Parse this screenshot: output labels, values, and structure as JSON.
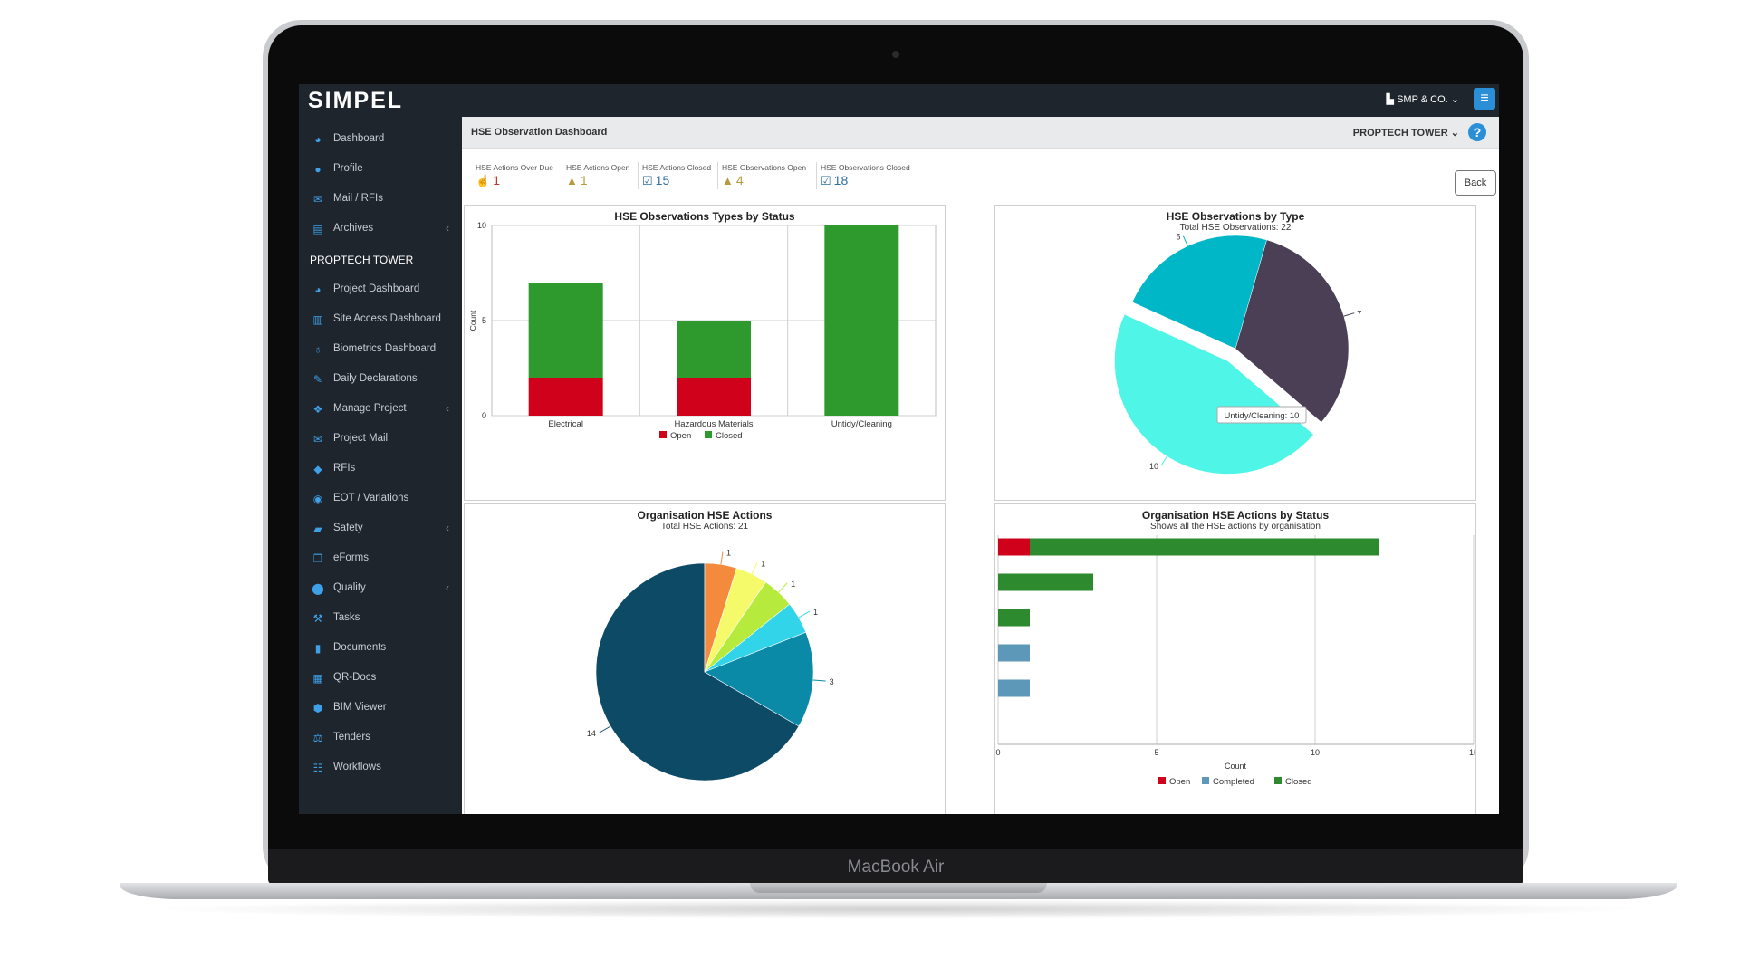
{
  "laptop": {
    "brand": "MacBook Air"
  },
  "app": {
    "logo": "SIMPEL",
    "company": "SMP & CO.",
    "page_title": "HSE Observation Dashboard",
    "project": "PROPTECH TOWER",
    "back_label": "Back"
  },
  "sidebar": {
    "items": [
      {
        "label": "Dashboard",
        "icon": "pie-icon"
      },
      {
        "label": "Profile",
        "icon": "user-icon"
      },
      {
        "label": "Mail / RFIs",
        "icon": "mail-icon"
      },
      {
        "label": "Archives",
        "icon": "archive-icon"
      }
    ],
    "section": "PROPTECH TOWER",
    "project_items": [
      {
        "label": "Project Dashboard",
        "icon": "pie-icon"
      },
      {
        "label": "Site Access Dashboard",
        "icon": "barcode-icon"
      },
      {
        "label": "Biometrics Dashboard",
        "icon": "fingerprint-icon"
      },
      {
        "label": "Daily Declarations",
        "icon": "edit-icon"
      },
      {
        "label": "Manage Project",
        "icon": "cubes-icon"
      },
      {
        "label": "Project Mail",
        "icon": "mail-icon"
      },
      {
        "label": "RFIs",
        "icon": "tag-icon"
      },
      {
        "label": "EOT / Variations",
        "icon": "eye-icon"
      },
      {
        "label": "Safety",
        "icon": "toolbox-icon"
      },
      {
        "label": "eForms",
        "icon": "copy-icon"
      },
      {
        "label": "Quality",
        "icon": "pin-icon"
      },
      {
        "label": "Tasks",
        "icon": "wrench-icon"
      },
      {
        "label": "Documents",
        "icon": "book-icon"
      },
      {
        "label": "QR-Docs",
        "icon": "qr-icon"
      },
      {
        "label": "BIM Viewer",
        "icon": "cube-icon"
      },
      {
        "label": "Tenders",
        "icon": "gavel-icon"
      },
      {
        "label": "Workflows",
        "icon": "sitemap-icon"
      }
    ]
  },
  "kpis": [
    {
      "label": "HSE Actions Over Due",
      "value": "1",
      "icon": "hand-icon",
      "color": "#c0392b"
    },
    {
      "label": "HSE Actions Open",
      "value": "1",
      "icon": "warning-icon",
      "color": "#b59a3e"
    },
    {
      "label": "HSE Actions Closed",
      "value": "15",
      "icon": "check-icon",
      "color": "#2f6f9f"
    },
    {
      "label": "HSE Observations Open",
      "value": "4",
      "icon": "warning-icon",
      "color": "#b59a3e"
    },
    {
      "label": "HSE Observations Closed",
      "value": "18",
      "icon": "check-icon",
      "color": "#2f6f9f"
    }
  ],
  "chart_data": [
    {
      "type": "bar",
      "title": "HSE Observations Types by Status",
      "ylabel": "Count",
      "categories": [
        "Electrical",
        "Hazardous Materials",
        "Untidy/Cleaning"
      ],
      "series": [
        {
          "name": "Open",
          "values": [
            2,
            2,
            0
          ],
          "color": "#d0021b"
        },
        {
          "name": "Closed",
          "values": [
            5,
            3,
            10
          ],
          "color": "#2e9a2e"
        }
      ],
      "ylim": [
        0,
        10
      ],
      "yticks": [
        "0",
        "5",
        "10"
      ],
      "stacked": true,
      "legend": "bottom"
    },
    {
      "type": "pie",
      "title": "HSE Observations by Type",
      "subtitle": "Total HSE Observations: 22",
      "slices": [
        {
          "value": 7,
          "label": "7",
          "color": "#4a3f55"
        },
        {
          "value": 10,
          "label": "10",
          "color": "#4ff5e6"
        },
        {
          "value": 5,
          "label": "5",
          "color": "#00b7c8"
        }
      ],
      "tooltip": "Untidy/Cleaning: 10"
    },
    {
      "type": "pie",
      "title": "Organisation HSE Actions",
      "subtitle": "Total HSE Actions: 21",
      "slices": [
        {
          "value": 14,
          "label": "14",
          "color": "#0d4a66"
        },
        {
          "value": 1,
          "label": "1",
          "color": "#f48a3c"
        },
        {
          "value": 1,
          "label": "1",
          "color": "#f4fa6a"
        },
        {
          "value": 1,
          "label": "1",
          "color": "#b6ea3c"
        },
        {
          "value": 1,
          "label": "1",
          "color": "#32d4ea"
        },
        {
          "value": 3,
          "label": "3",
          "color": "#0b8aa8"
        }
      ]
    },
    {
      "type": "bar",
      "orientation": "horizontal",
      "title": "Organisation HSE Actions by Status",
      "subtitle": "Shows all the HSE actions by organisation",
      "xlabel": "Count",
      "categories": [
        "",
        "",
        "",
        "",
        ""
      ],
      "series": [
        {
          "name": "Open",
          "values": [
            1,
            0,
            0,
            0,
            0
          ],
          "color": "#d0021b"
        },
        {
          "name": "Completed",
          "values": [
            0,
            0,
            0,
            1,
            1
          ],
          "color": "#5d98b8"
        },
        {
          "name": "Closed",
          "values": [
            11,
            3,
            1,
            0,
            0
          ],
          "color": "#2e8a2e"
        }
      ],
      "xlim": [
        0,
        15
      ],
      "xticks": [
        "0",
        "5",
        "10",
        "15"
      ],
      "stacked": true,
      "legend": "bottom"
    }
  ]
}
